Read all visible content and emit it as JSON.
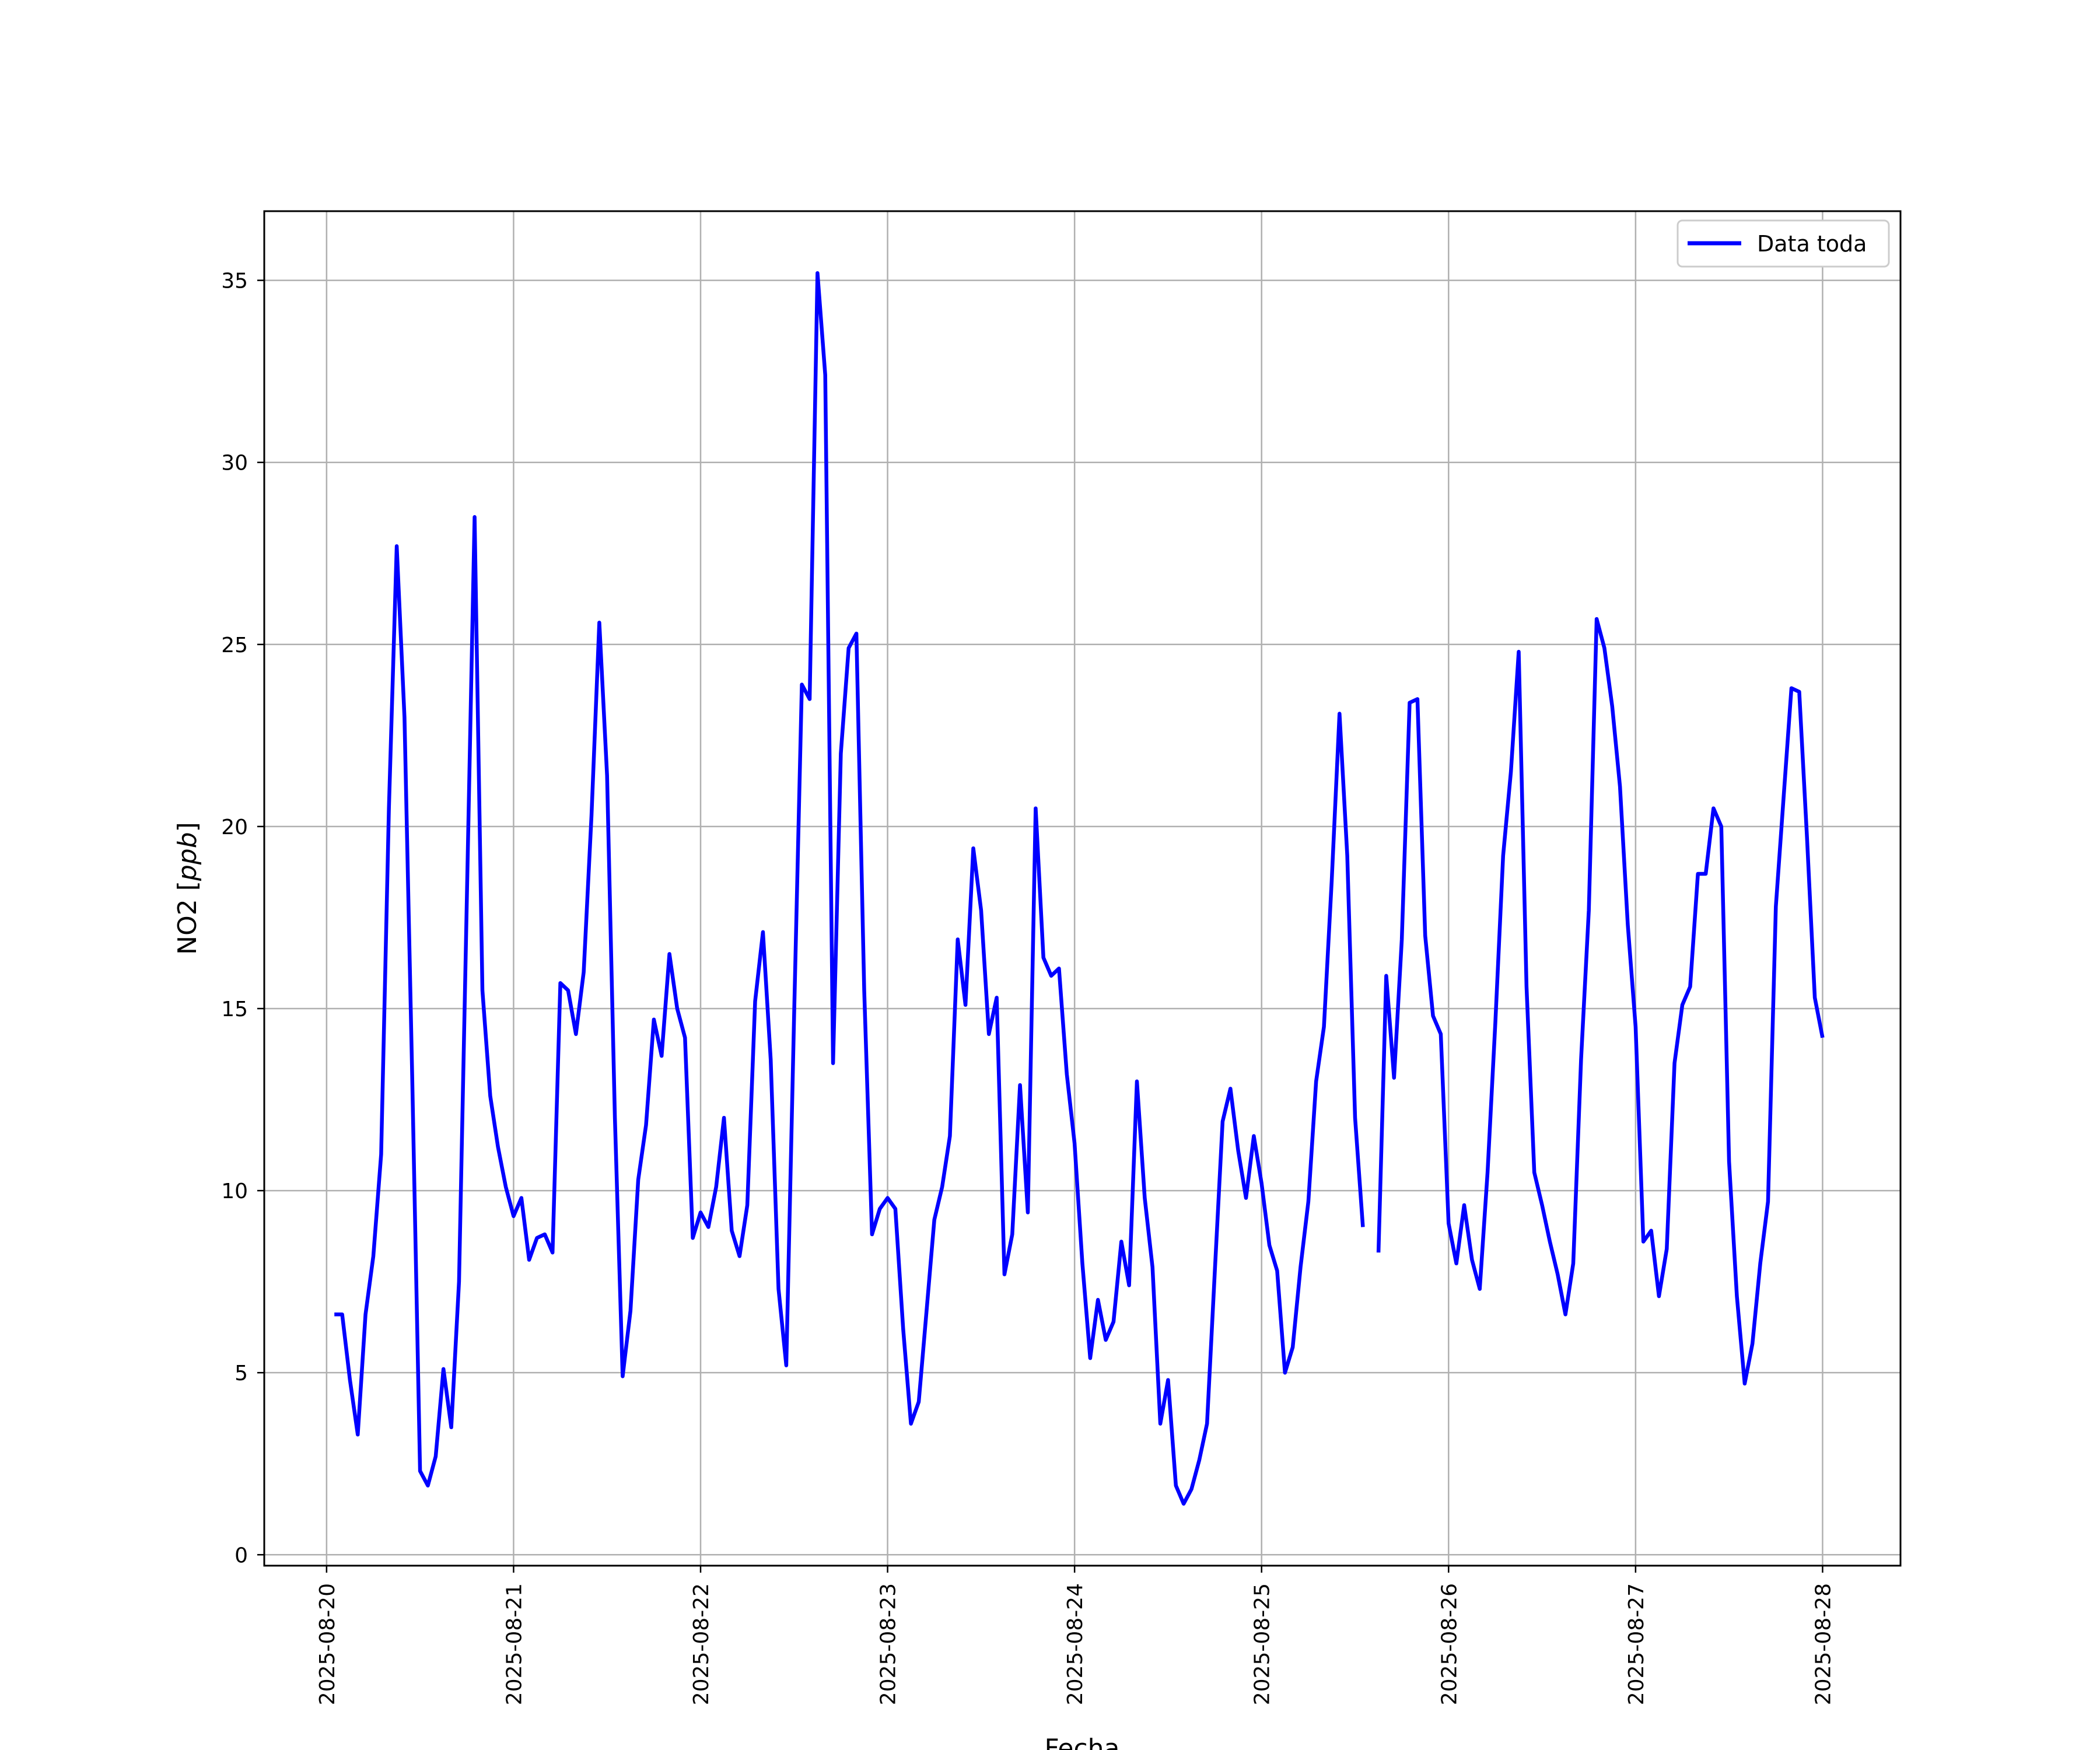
{
  "chart_data": {
    "type": "line",
    "xlabel": "Fecha",
    "ylabel": "NO2 [ppb]",
    "ylabel_plain": "NO2 [",
    "ylabel_italic": "ppb",
    "ylabel_close": "]",
    "xlim": [
      "2025-08-19T16:00",
      "2025-08-28T10:00"
    ],
    "ylim": [
      -0.3,
      36.9
    ],
    "x_tick_labels": [
      "2025-08-20",
      "2025-08-21",
      "2025-08-22",
      "2025-08-23",
      "2025-08-24",
      "2025-08-25",
      "2025-08-26",
      "2025-08-27",
      "2025-08-28"
    ],
    "y_tick_labels": [
      "0",
      "5",
      "10",
      "15",
      "20",
      "25",
      "30",
      "35"
    ],
    "y_tick_values": [
      0,
      5,
      10,
      15,
      20,
      25,
      30,
      35
    ],
    "grid": true,
    "legend_position": "top-right",
    "series": [
      {
        "name": "Data toda",
        "color": "#0000ff",
        "points": [
          [
            "2025-08-20T01:00",
            6.6
          ],
          [
            "2025-08-20T02:00",
            6.6
          ],
          [
            "2025-08-20T03:00",
            4.8
          ],
          [
            "2025-08-20T04:00",
            3.3
          ],
          [
            "2025-08-20T05:00",
            6.6
          ],
          [
            "2025-08-20T06:00",
            8.2
          ],
          [
            "2025-08-20T07:00",
            11.0
          ],
          [
            "2025-08-20T08:00",
            20.5
          ],
          [
            "2025-08-20T09:00",
            27.7
          ],
          [
            "2025-08-20T10:00",
            23.0
          ],
          [
            "2025-08-20T11:00",
            13.0
          ],
          [
            "2025-08-20T12:00",
            2.3
          ],
          [
            "2025-08-20T13:00",
            1.9
          ],
          [
            "2025-08-20T14:00",
            2.7
          ],
          [
            "2025-08-20T15:00",
            5.1
          ],
          [
            "2025-08-20T16:00",
            3.5
          ],
          [
            "2025-08-20T17:00",
            7.5
          ],
          [
            "2025-08-20T18:00",
            18.0
          ],
          [
            "2025-08-20T19:00",
            28.5
          ],
          [
            "2025-08-20T20:00",
            15.5
          ],
          [
            "2025-08-20T21:00",
            12.6
          ],
          [
            "2025-08-20T22:00",
            11.2
          ],
          [
            "2025-08-20T23:00",
            10.1
          ],
          [
            "2025-08-21T00:00",
            9.3
          ],
          [
            "2025-08-21T01:00",
            9.8
          ],
          [
            "2025-08-21T02:00",
            8.1
          ],
          [
            "2025-08-21T03:00",
            8.7
          ],
          [
            "2025-08-21T04:00",
            8.8
          ],
          [
            "2025-08-21T05:00",
            8.3
          ],
          [
            "2025-08-21T06:00",
            15.7
          ],
          [
            "2025-08-21T07:00",
            15.5
          ],
          [
            "2025-08-21T08:00",
            14.3
          ],
          [
            "2025-08-21T09:00",
            16.0
          ],
          [
            "2025-08-21T10:00",
            20.3
          ],
          [
            "2025-08-21T11:00",
            25.6
          ],
          [
            "2025-08-21T12:00",
            21.4
          ],
          [
            "2025-08-21T13:00",
            12.0
          ],
          [
            "2025-08-21T14:00",
            4.9
          ],
          [
            "2025-08-21T15:00",
            6.7
          ],
          [
            "2025-08-21T16:00",
            10.3
          ],
          [
            "2025-08-21T17:00",
            11.8
          ],
          [
            "2025-08-21T18:00",
            14.7
          ],
          [
            "2025-08-21T19:00",
            13.7
          ],
          [
            "2025-08-21T20:00",
            16.5
          ],
          [
            "2025-08-21T21:00",
            15.0
          ],
          [
            "2025-08-21T22:00",
            14.2
          ],
          [
            "2025-08-21T23:00",
            8.7
          ],
          [
            "2025-08-22T00:00",
            9.4
          ],
          [
            "2025-08-22T01:00",
            9.0
          ],
          [
            "2025-08-22T02:00",
            10.1
          ],
          [
            "2025-08-22T03:00",
            12.0
          ],
          [
            "2025-08-22T04:00",
            8.9
          ],
          [
            "2025-08-22T05:00",
            8.2
          ],
          [
            "2025-08-22T06:00",
            9.6
          ],
          [
            "2025-08-22T07:00",
            15.2
          ],
          [
            "2025-08-22T08:00",
            17.1
          ],
          [
            "2025-08-22T09:00",
            13.6
          ],
          [
            "2025-08-22T10:00",
            7.3
          ],
          [
            "2025-08-22T11:00",
            5.2
          ],
          [
            "2025-08-22T12:00",
            14.8
          ],
          [
            "2025-08-22T13:00",
            23.9
          ],
          [
            "2025-08-22T14:00",
            23.5
          ],
          [
            "2025-08-22T15:00",
            35.2
          ],
          [
            "2025-08-22T16:00",
            32.4
          ],
          [
            "2025-08-22T17:00",
            13.5
          ],
          [
            "2025-08-22T18:00",
            22.0
          ],
          [
            "2025-08-22T19:00",
            24.9
          ],
          [
            "2025-08-22T20:00",
            25.3
          ],
          [
            "2025-08-22T21:00",
            15.5
          ],
          [
            "2025-08-22T22:00",
            8.8
          ],
          [
            "2025-08-22T23:00",
            9.5
          ],
          [
            "2025-08-23T00:00",
            9.8
          ],
          [
            "2025-08-23T01:00",
            9.5
          ],
          [
            "2025-08-23T02:00",
            6.2
          ],
          [
            "2025-08-23T03:00",
            3.6
          ],
          [
            "2025-08-23T04:00",
            4.2
          ],
          [
            "2025-08-23T05:00",
            6.7
          ],
          [
            "2025-08-23T06:00",
            9.2
          ],
          [
            "2025-08-23T07:00",
            10.1
          ],
          [
            "2025-08-23T08:00",
            11.5
          ],
          [
            "2025-08-23T09:00",
            16.9
          ],
          [
            "2025-08-23T10:00",
            15.1
          ],
          [
            "2025-08-23T11:00",
            19.4
          ],
          [
            "2025-08-23T12:00",
            17.7
          ],
          [
            "2025-08-23T13:00",
            14.3
          ],
          [
            "2025-08-23T14:00",
            15.3
          ],
          [
            "2025-08-23T15:00",
            7.7
          ],
          [
            "2025-08-23T16:00",
            8.8
          ],
          [
            "2025-08-23T17:00",
            12.9
          ],
          [
            "2025-08-23T18:00",
            9.4
          ],
          [
            "2025-08-23T19:00",
            20.5
          ],
          [
            "2025-08-23T20:00",
            16.4
          ],
          [
            "2025-08-23T21:00",
            15.9
          ],
          [
            "2025-08-23T22:00",
            16.1
          ],
          [
            "2025-08-23T23:00",
            13.2
          ],
          [
            "2025-08-24T00:00",
            11.3
          ],
          [
            "2025-08-24T01:00",
            8.0
          ],
          [
            "2025-08-24T02:00",
            5.4
          ],
          [
            "2025-08-24T03:00",
            7.0
          ],
          [
            "2025-08-24T04:00",
            5.9
          ],
          [
            "2025-08-24T05:00",
            6.4
          ],
          [
            "2025-08-24T06:00",
            8.6
          ],
          [
            "2025-08-24T07:00",
            7.4
          ],
          [
            "2025-08-24T08:00",
            13.0
          ],
          [
            "2025-08-24T09:00",
            9.8
          ],
          [
            "2025-08-24T10:00",
            7.9
          ],
          [
            "2025-08-24T11:00",
            3.6
          ],
          [
            "2025-08-24T12:00",
            4.8
          ],
          [
            "2025-08-24T13:00",
            1.9
          ],
          [
            "2025-08-24T14:00",
            1.4
          ],
          [
            "2025-08-24T15:00",
            1.8
          ],
          [
            "2025-08-24T16:00",
            2.6
          ],
          [
            "2025-08-24T17:00",
            3.6
          ],
          [
            "2025-08-24T18:00",
            7.8
          ],
          [
            "2025-08-24T19:00",
            11.9
          ],
          [
            "2025-08-24T20:00",
            12.8
          ],
          [
            "2025-08-24T21:00",
            11.1
          ],
          [
            "2025-08-24T22:00",
            9.8
          ],
          [
            "2025-08-24T23:00",
            11.5
          ],
          [
            "2025-08-25T00:00",
            10.2
          ],
          [
            "2025-08-25T01:00",
            8.5
          ],
          [
            "2025-08-25T02:00",
            7.8
          ],
          [
            "2025-08-25T03:00",
            5.0
          ],
          [
            "2025-08-25T04:00",
            5.7
          ],
          [
            "2025-08-25T05:00",
            7.9
          ],
          [
            "2025-08-25T06:00",
            9.7
          ],
          [
            "2025-08-25T07:00",
            13.0
          ],
          [
            "2025-08-25T08:00",
            14.5
          ],
          [
            "2025-08-25T09:00",
            18.5
          ],
          [
            "2025-08-25T10:00",
            23.1
          ],
          [
            "2025-08-25T11:00",
            19.2
          ],
          [
            "2025-08-25T12:00",
            12.0
          ],
          [
            "2025-08-25T13:00",
            9.0
          ],
          null,
          [
            "2025-08-25T15:00",
            8.3
          ],
          [
            "2025-08-25T16:00",
            15.9
          ],
          [
            "2025-08-25T17:00",
            13.1
          ],
          [
            "2025-08-25T18:00",
            16.9
          ],
          [
            "2025-08-25T19:00",
            23.4
          ],
          [
            "2025-08-25T20:00",
            23.5
          ],
          [
            "2025-08-25T21:00",
            17.0
          ],
          [
            "2025-08-25T22:00",
            14.8
          ],
          [
            "2025-08-25T23:00",
            14.3
          ],
          [
            "2025-08-26T00:00",
            9.1
          ],
          [
            "2025-08-26T01:00",
            8.0
          ],
          [
            "2025-08-26T02:00",
            9.6
          ],
          [
            "2025-08-26T03:00",
            8.1
          ],
          [
            "2025-08-26T04:00",
            7.3
          ],
          [
            "2025-08-26T05:00",
            10.5
          ],
          [
            "2025-08-26T06:00",
            14.6
          ],
          [
            "2025-08-26T07:00",
            19.2
          ],
          [
            "2025-08-26T08:00",
            21.5
          ],
          [
            "2025-08-26T09:00",
            24.8
          ],
          [
            "2025-08-26T10:00",
            15.6
          ],
          [
            "2025-08-26T11:00",
            10.5
          ],
          [
            "2025-08-26T12:00",
            9.6
          ],
          [
            "2025-08-26T13:00",
            8.6
          ],
          [
            "2025-08-26T14:00",
            7.7
          ],
          [
            "2025-08-26T15:00",
            6.6
          ],
          [
            "2025-08-26T16:00",
            8.0
          ],
          [
            "2025-08-26T17:00",
            13.6
          ],
          [
            "2025-08-26T18:00",
            17.7
          ],
          [
            "2025-08-26T19:00",
            25.7
          ],
          [
            "2025-08-26T20:00",
            24.9
          ],
          [
            "2025-08-26T21:00",
            23.3
          ],
          [
            "2025-08-26T22:00",
            21.1
          ],
          [
            "2025-08-26T23:00",
            17.3
          ],
          [
            "2025-08-27T00:00",
            14.5
          ],
          [
            "2025-08-27T01:00",
            8.6
          ],
          [
            "2025-08-27T02:00",
            8.9
          ],
          [
            "2025-08-27T03:00",
            7.1
          ],
          [
            "2025-08-27T04:00",
            8.4
          ],
          [
            "2025-08-27T05:00",
            13.5
          ],
          [
            "2025-08-27T06:00",
            15.1
          ],
          [
            "2025-08-27T07:00",
            15.6
          ],
          [
            "2025-08-27T08:00",
            18.7
          ],
          [
            "2025-08-27T09:00",
            18.7
          ],
          [
            "2025-08-27T10:00",
            20.5
          ],
          [
            "2025-08-27T11:00",
            20.0
          ],
          [
            "2025-08-27T12:00",
            10.8
          ],
          [
            "2025-08-27T13:00",
            7.1
          ],
          [
            "2025-08-27T14:00",
            4.7
          ],
          [
            "2025-08-27T15:00",
            5.8
          ],
          [
            "2025-08-27T16:00",
            8.0
          ],
          [
            "2025-08-27T17:00",
            9.7
          ],
          [
            "2025-08-27T18:00",
            17.8
          ],
          [
            "2025-08-27T19:00",
            20.8
          ],
          [
            "2025-08-27T20:00",
            23.8
          ],
          [
            "2025-08-27T21:00",
            23.7
          ],
          [
            "2025-08-27T22:00",
            19.7
          ],
          [
            "2025-08-27T23:00",
            15.3
          ],
          [
            "2025-08-28T00:00",
            14.2
          ]
        ]
      }
    ]
  },
  "legend": {
    "label": "Data toda"
  }
}
